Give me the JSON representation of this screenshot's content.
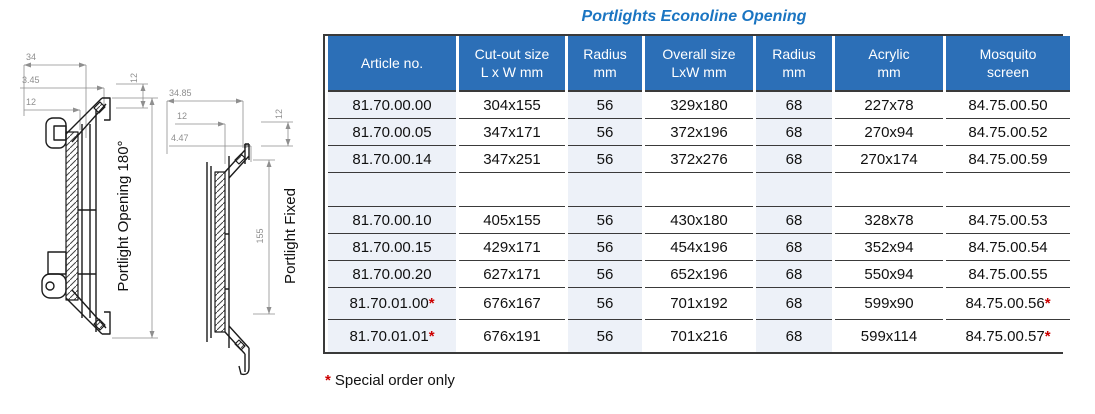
{
  "title": "Portlights Econoline Opening",
  "colors": {
    "header_bg": "#2c6fb7",
    "title_color": "#1b75c2",
    "asterisk_color": "#cc0000",
    "tinted_column_bg": "#edf1f8",
    "table_border": "#3a3a3a"
  },
  "drawings": {
    "opening": {
      "label": "Portlight Opening 180°",
      "dim_top_1": "34",
      "dim_top_2": "3.45",
      "dim_top_3": "12",
      "dim_side": "12"
    },
    "fixed": {
      "label": "Portlight Fixed",
      "dim_top_1": "34.85",
      "dim_top_2": "12",
      "dim_top_3": "4.47",
      "dim_side": "12",
      "dim_height": "155"
    }
  },
  "table": {
    "columns": [
      {
        "line1": "Article no.",
        "line2": ""
      },
      {
        "line1": "Cut-out size",
        "line2": "L x W mm"
      },
      {
        "line1": "Radius",
        "line2": "mm"
      },
      {
        "line1": "Overall size",
        "line2": "LxW mm"
      },
      {
        "line1": "Radius",
        "line2": "mm"
      },
      {
        "line1": "Acrylic",
        "line2": "mm"
      },
      {
        "line1": "Mosquito",
        "line2": "screen"
      }
    ],
    "tinted_column_indexes": [
      0,
      2,
      4
    ],
    "rows": [
      {
        "cells": [
          "81.70.00.00",
          "304x155",
          "56",
          "329x180",
          "68",
          "227x78",
          "84.75.00.50"
        ]
      },
      {
        "cells": [
          "81.70.00.05",
          "347x171",
          "56",
          "372x196",
          "68",
          "270x94",
          "84.75.00.52"
        ]
      },
      {
        "cells": [
          "81.70.00.14",
          "347x251",
          "56",
          "372x276",
          "68",
          "270x174",
          "84.75.00.59"
        ]
      },
      {
        "cells": [
          "",
          "",
          "",
          "",
          "",
          "",
          ""
        ],
        "empty": true
      },
      {
        "cells": [
          "81.70.00.10",
          "405x155",
          "56",
          "430x180",
          "68",
          "328x78",
          "84.75.00.53"
        ]
      },
      {
        "cells": [
          "81.70.00.15",
          "429x171",
          "56",
          "454x196",
          "68",
          "352x94",
          "84.75.00.54"
        ]
      },
      {
        "cells": [
          "81.70.00.20",
          "627x171",
          "56",
          "652x196",
          "68",
          "550x94",
          "84.75.00.55"
        ]
      },
      {
        "cells": [
          "81.70.01.00*",
          "676x167",
          "56",
          "701x192",
          "68",
          "599x90",
          "84.75.00.56*"
        ],
        "tall": true
      },
      {
        "cells": [
          "81.70.01.01*",
          "676x191",
          "56",
          "701x216",
          "68",
          "599x114",
          "84.75.00.57*"
        ],
        "tall": true
      }
    ]
  },
  "footnote": {
    "marker": "*",
    "text": "Special order only"
  }
}
